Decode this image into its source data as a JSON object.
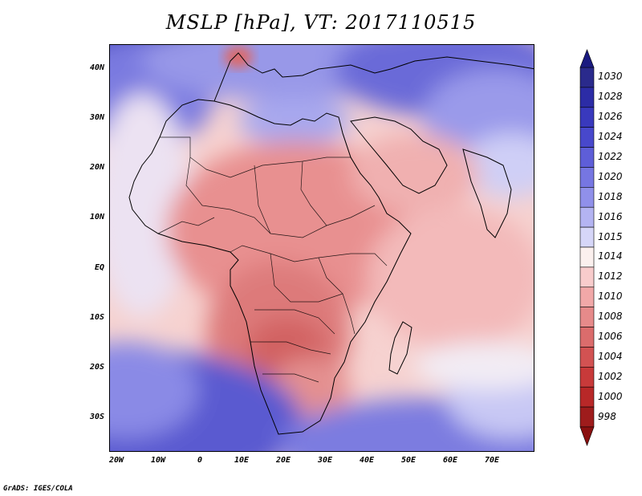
{
  "title": "MSLP [hPa], VT: 2017110515",
  "credit": "GrADS: IGES/COLA",
  "map": {
    "variable": "mean sea level pressure",
    "units": "hPa",
    "region": "Africa, Middle East, Indian Ocean",
    "lat_range": [
      -37,
      45
    ],
    "lon_range": [
      -22,
      80
    ],
    "lat_ticks": [
      "40N",
      "30N",
      "20N",
      "10N",
      "EQ",
      "10S",
      "20S",
      "30S"
    ],
    "lon_ticks": [
      "20W",
      "10W",
      "0",
      "10E",
      "20E",
      "30E",
      "40E",
      "50E",
      "60E",
      "70E"
    ]
  },
  "colorbar": {
    "levels": [
      {
        "label": "1030",
        "color": "#2a2a8c"
      },
      {
        "label": "1028",
        "color": "#2c2ca6"
      },
      {
        "label": "1026",
        "color": "#3939bd"
      },
      {
        "label": "1024",
        "color": "#4848cc"
      },
      {
        "label": "1022",
        "color": "#5e5ed8"
      },
      {
        "label": "1020",
        "color": "#7676e2"
      },
      {
        "label": "1018",
        "color": "#9090ea"
      },
      {
        "label": "1016",
        "color": "#b4b4f2"
      },
      {
        "label": "1015",
        "color": "#d6d6f8"
      },
      {
        "label": "1014",
        "color": "#fbf0ee"
      },
      {
        "label": "1012",
        "color": "#f8cccc"
      },
      {
        "label": "1010",
        "color": "#f1a8a8"
      },
      {
        "label": "1008",
        "color": "#e68a8a"
      },
      {
        "label": "1006",
        "color": "#db6c6c"
      },
      {
        "label": "1004",
        "color": "#d25252"
      },
      {
        "label": "1002",
        "color": "#c83a3a"
      },
      {
        "label": "1000",
        "color": "#b82828"
      },
      {
        "label": "998",
        "color": "#9e1c1c"
      }
    ],
    "top_color": "#1a1a80",
    "bottom_color": "#8a1010"
  }
}
